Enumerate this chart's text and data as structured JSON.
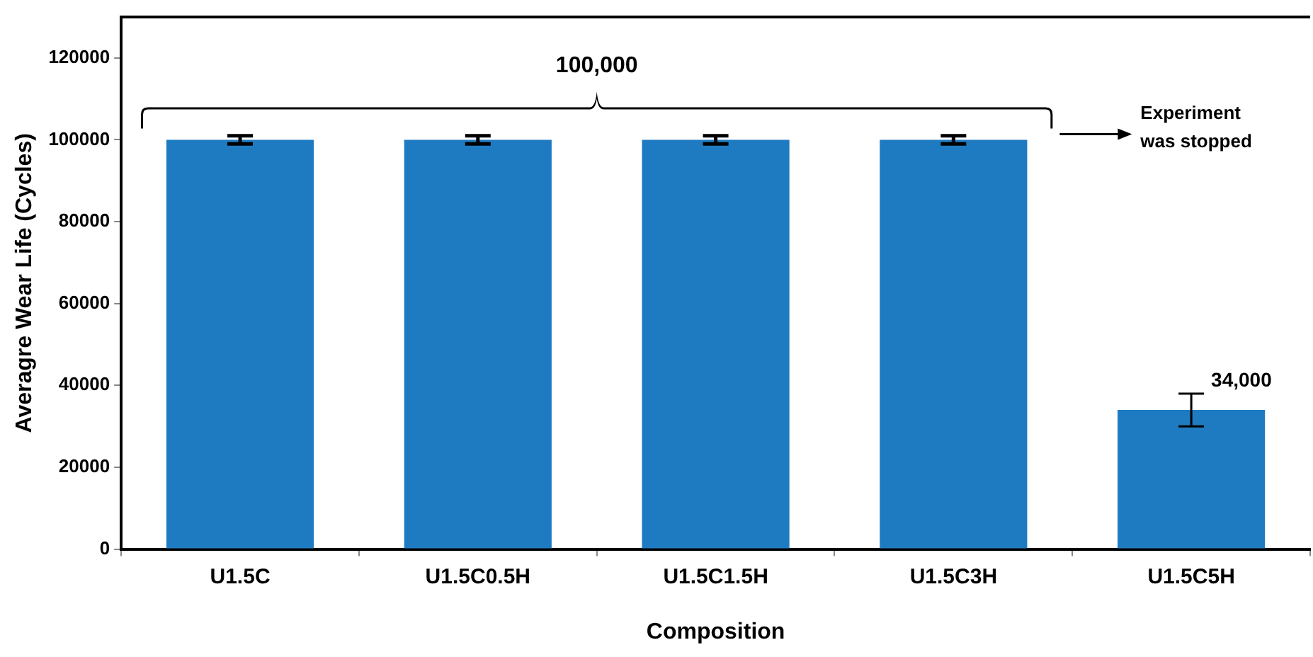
{
  "chart_data": {
    "type": "bar",
    "xlabel": "Composition",
    "ylabel": "Averagre Wear Life (Cycles)",
    "categories": [
      "U1.5C",
      "U1.5C0.5H",
      "U1.5C1.5H",
      "U1.5C3H",
      "U1.5C5H"
    ],
    "values": [
      100000,
      100000,
      100000,
      100000,
      34000
    ],
    "errors": [
      1000,
      1000,
      1000,
      1000,
      4000
    ],
    "value_labels": [
      null,
      null,
      null,
      null,
      "34,000"
    ],
    "color": "#1f7bc1",
    "ylim": [
      0,
      130000
    ],
    "yticks": [
      0,
      20000,
      40000,
      60000,
      80000,
      100000,
      120000
    ],
    "grid": false,
    "legend": false,
    "annotations": [
      "100,000",
      "Experiment was stopped"
    ]
  }
}
